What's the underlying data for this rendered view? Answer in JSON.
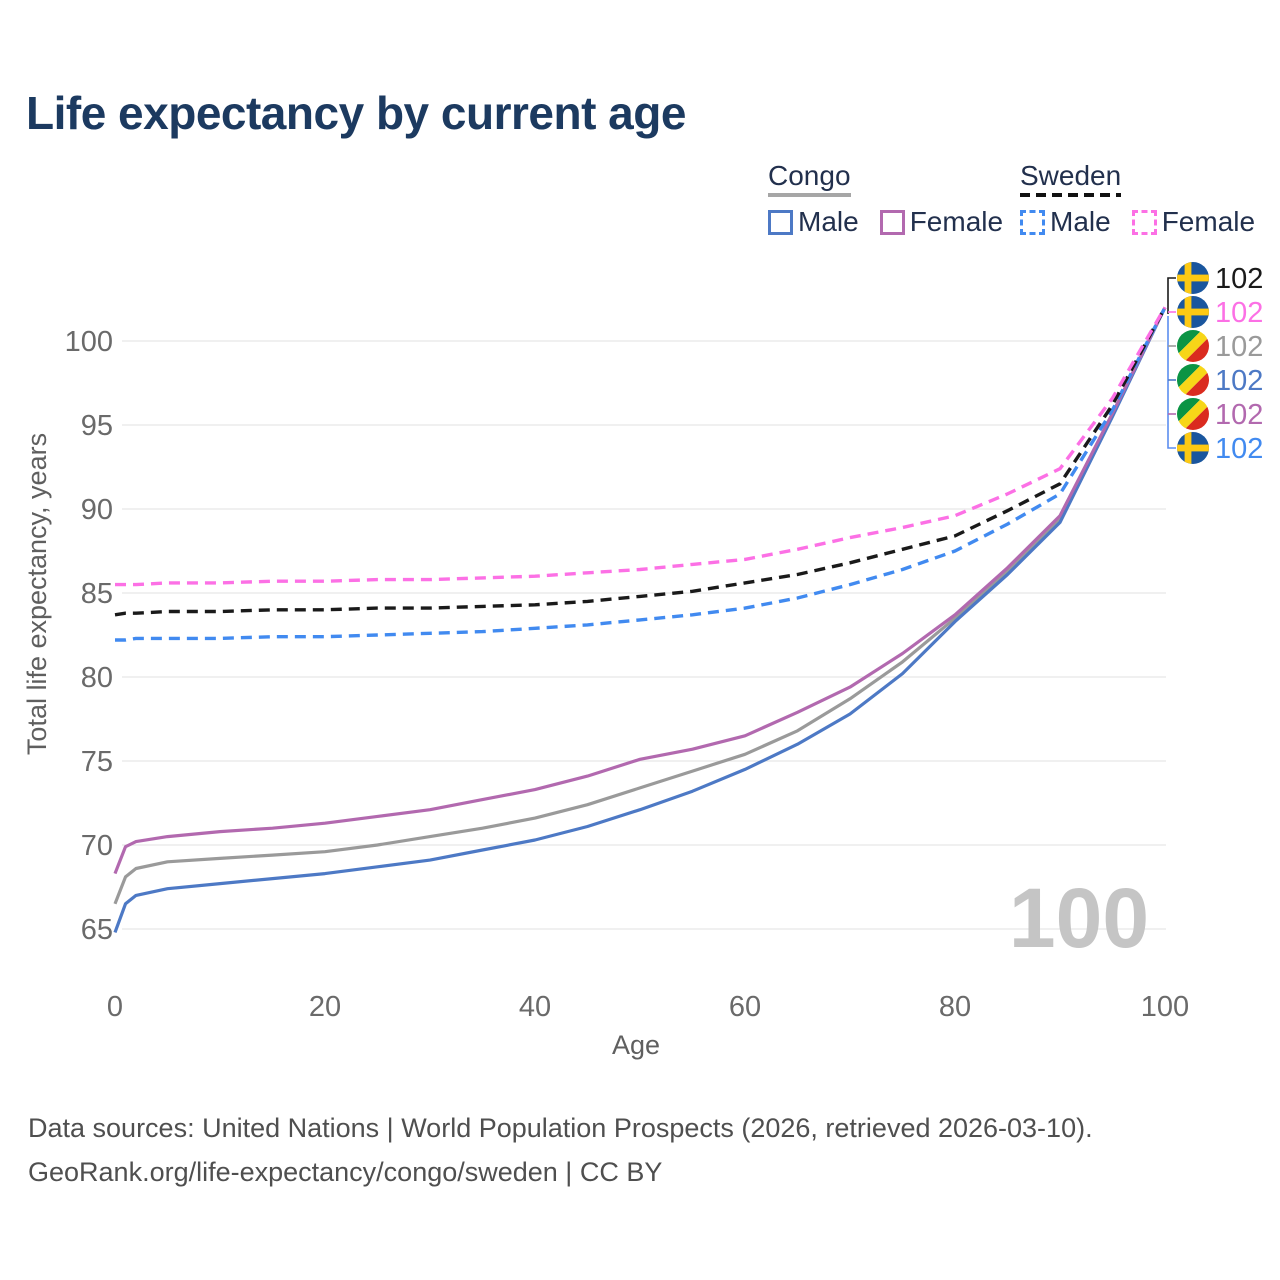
{
  "title": "Life expectancy by current age",
  "watermark": "100",
  "legend": {
    "groups": [
      {
        "name": "Congo",
        "underline_style": "solid",
        "underline_color": "#a6a6a6",
        "items": [
          {
            "label": "Male",
            "color": "#4d79c5",
            "dashed": false
          },
          {
            "label": "Female",
            "color": "#b269af",
            "dashed": false
          }
        ]
      },
      {
        "name": "Sweden",
        "underline_style": "dashed",
        "underline_color": "#111111",
        "items": [
          {
            "label": "Male",
            "color": "#418af0",
            "dashed": true
          },
          {
            "label": "Female",
            "color": "#fc70e5",
            "dashed": true
          }
        ]
      }
    ]
  },
  "chart_data": {
    "type": "line",
    "title": "Life expectancy by current age",
    "xlabel": "Age",
    "ylabel": "Total life expectancy, years",
    "x_ticks": [
      0,
      20,
      40,
      60,
      80,
      100
    ],
    "y_ticks": [
      65,
      70,
      75,
      80,
      85,
      90,
      95,
      100
    ],
    "xlim": [
      0,
      100
    ],
    "ylim": [
      63,
      103
    ],
    "grid": "horizontal",
    "legend_position": "top-right",
    "x": [
      0,
      1,
      2,
      5,
      10,
      15,
      20,
      25,
      30,
      35,
      40,
      45,
      50,
      55,
      60,
      65,
      70,
      75,
      80,
      85,
      90,
      95,
      100
    ],
    "series": [
      {
        "name": "Congo Total",
        "slug": "congo-total",
        "color": "#9a9a9a",
        "dashed": false,
        "values": [
          66.5,
          68.1,
          68.6,
          69.0,
          69.2,
          69.4,
          69.6,
          70.0,
          70.5,
          71.0,
          71.6,
          72.4,
          73.4,
          74.4,
          75.4,
          76.8,
          78.7,
          80.9,
          83.5,
          86.3,
          89.4,
          95.6,
          102
        ]
      },
      {
        "name": "Congo Male",
        "slug": "congo-male",
        "color": "#4d79c5",
        "dashed": false,
        "values": [
          64.8,
          66.5,
          67.0,
          67.4,
          67.7,
          68.0,
          68.3,
          68.7,
          69.1,
          69.7,
          70.3,
          71.1,
          72.1,
          73.2,
          74.5,
          76.0,
          77.8,
          80.2,
          83.3,
          86.1,
          89.2,
          95.5,
          102
        ]
      },
      {
        "name": "Congo Female",
        "slug": "congo-female",
        "color": "#b269af",
        "dashed": false,
        "values": [
          68.3,
          69.9,
          70.2,
          70.5,
          70.8,
          71.0,
          71.3,
          71.7,
          72.1,
          72.7,
          73.3,
          74.1,
          75.1,
          75.7,
          76.5,
          77.9,
          79.4,
          81.4,
          83.7,
          86.5,
          89.6,
          95.7,
          102
        ]
      },
      {
        "name": "Sweden Male",
        "slug": "sweden-male",
        "color": "#418af0",
        "dashed": true,
        "values": [
          82.2,
          82.2,
          82.3,
          82.3,
          82.3,
          82.4,
          82.4,
          82.5,
          82.6,
          82.7,
          82.9,
          83.1,
          83.4,
          83.7,
          84.1,
          84.7,
          85.5,
          86.4,
          87.5,
          89.1,
          90.9,
          95.9,
          102
        ]
      },
      {
        "name": "Sweden Total",
        "slug": "sweden-total",
        "color": "#1a1a1a",
        "dashed": true,
        "values": [
          83.7,
          83.8,
          83.8,
          83.9,
          83.9,
          84.0,
          84.0,
          84.1,
          84.1,
          84.2,
          84.3,
          84.5,
          84.8,
          85.1,
          85.6,
          86.1,
          86.8,
          87.6,
          88.4,
          89.9,
          91.5,
          96.2,
          102
        ]
      },
      {
        "name": "Sweden Female",
        "slug": "sweden-female",
        "color": "#fc70e5",
        "dashed": true,
        "values": [
          85.5,
          85.5,
          85.5,
          85.6,
          85.6,
          85.7,
          85.7,
          85.8,
          85.8,
          85.9,
          86.0,
          86.2,
          86.4,
          86.7,
          87.0,
          87.6,
          88.3,
          88.9,
          89.6,
          90.9,
          92.4,
          96.6,
          102
        ]
      }
    ]
  },
  "end_labels": [
    {
      "flag": "sweden",
      "value": "102",
      "color": "#1a1a1a"
    },
    {
      "flag": "sweden",
      "value": "102",
      "color": "#fc70e5"
    },
    {
      "flag": "congo",
      "value": "102",
      "color": "#9a9a9a"
    },
    {
      "flag": "congo",
      "value": "102",
      "color": "#4d79c5"
    },
    {
      "flag": "congo",
      "value": "102",
      "color": "#b269af"
    },
    {
      "flag": "sweden",
      "value": "102",
      "color": "#418af0"
    }
  ],
  "flag_colors": {
    "sweden_blue": "#1a569e",
    "sweden_yellow": "#fdc913",
    "congo_green": "#0b9444",
    "congo_yellow": "#f7d618",
    "congo_red": "#da2b1f"
  },
  "footer": {
    "line1": "Data sources: United Nations | World Population Prospects (2026, retrieved 2026-03-10).",
    "line2": "GeoRank.org/life-expectancy/congo/sweden | CC BY"
  }
}
